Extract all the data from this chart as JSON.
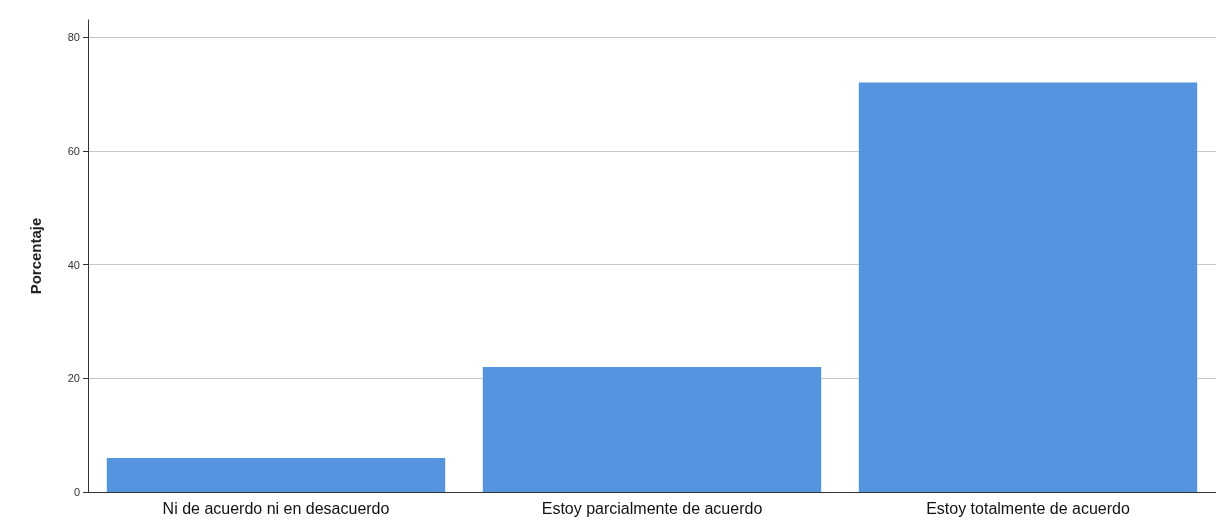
{
  "chart_data": {
    "type": "bar",
    "ylabel": "Porcentaje",
    "categories": [
      "Ni de acuerdo ni en desacuerdo",
      "Estoy parcialmente de acuerdo",
      "Estoy totalmente de acuerdo"
    ],
    "values": [
      6,
      22,
      72
    ],
    "color": "#5595e0",
    "ylim": [
      0,
      83
    ],
    "yticks": [
      0,
      20,
      40,
      60,
      80
    ],
    "grid": "y"
  }
}
